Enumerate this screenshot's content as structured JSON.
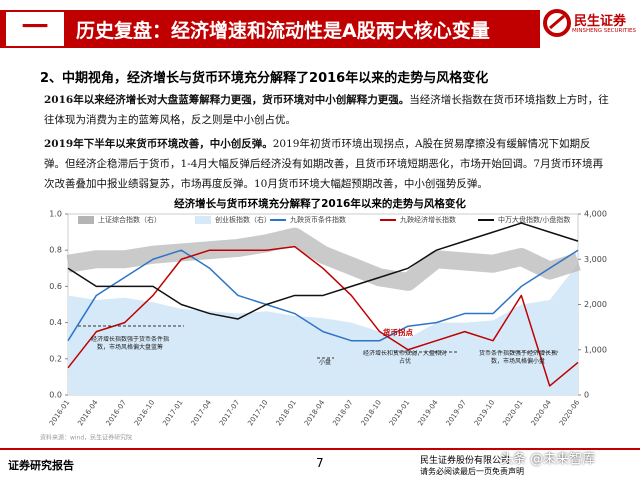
{
  "header": {
    "number": "一",
    "title": "历史复盘：经济增速和流动性是A股两大核心变量",
    "logo_cn": "民生证券",
    "logo_en": "MINSHENG SECURITIES"
  },
  "section": "2、中期视角，经济增长与货币环境充分解释了2016年以来的走势与风格变化",
  "paragraphs": [
    {
      "lead": "2016年以来经济增长对大盘蓝筹解释力更强，货币环境对中小创解释力更强。",
      "text": "当经济增长指数在货币环境指数上方时，往往体现为消费为主的蓝筹风格，反之则是中小创占优。"
    },
    {
      "lead": "2019年下半年以来货币环境改善，中小创反弹。",
      "text": "2019年初货币环境出现拐点，A股在贸易摩擦没有缓解情况下如期反弹。但经济企稳滞后于货币，1-4月大幅反弹后经济没有如期改善，且货币环境短期恶化，市场开始回调。7月货币环境再次改善叠加中报业绩弱复苏，市场再度反弹。10月货币环境大幅超预期改善，中小创强势反弹。"
    }
  ],
  "chart_data": {
    "type": "line",
    "title": "经济增长与货币环境充分解释了2016年以来的走势与风格变化",
    "categories": [
      "2016-01",
      "2016-04",
      "2016-07",
      "2016-10",
      "2017-01",
      "2017-04",
      "2017-07",
      "2017-10",
      "2018-01",
      "2018-04",
      "2018-07",
      "2018-10",
      "2019-01",
      "2019-04",
      "2019-07",
      "2019-10",
      "2020-01",
      "2020-04",
      "2020-06"
    ],
    "series": [
      {
        "name": "上证综合指数（右）",
        "type": "band",
        "color": "#b4b4b4",
        "axis": "y2",
        "values": [
          2900,
          3000,
          3000,
          3100,
          3150,
          3200,
          3250,
          3350,
          3500,
          3100,
          2850,
          2600,
          2500,
          3000,
          2950,
          2900,
          3050,
          2750,
          2950
        ]
      },
      {
        "name": "创业板指数（右）",
        "type": "area",
        "color": "#d6e9f8",
        "axis": "y2",
        "values": [
          2200,
          2100,
          2150,
          2050,
          1900,
          1850,
          1800,
          1850,
          1750,
          1700,
          1600,
          1400,
          1250,
          1600,
          1600,
          1650,
          2000,
          2100,
          2900
        ]
      },
      {
        "name": "九鞅货币条件指数",
        "type": "line",
        "color": "#2e75c6",
        "values": [
          0.3,
          0.55,
          0.65,
          0.75,
          0.8,
          0.7,
          0.55,
          0.5,
          0.45,
          0.35,
          0.3,
          0.3,
          0.38,
          0.4,
          0.45,
          0.45,
          0.6,
          0.7,
          0.8
        ]
      },
      {
        "name": "九鞅经济增长指数",
        "type": "line",
        "color": "#c00000",
        "values": [
          0.15,
          0.35,
          0.4,
          0.55,
          0.75,
          0.8,
          0.8,
          0.8,
          0.82,
          0.7,
          0.55,
          0.35,
          0.25,
          0.3,
          0.35,
          0.3,
          0.55,
          0.05,
          0.18
        ]
      },
      {
        "name": "中万大盘指数/小盘指数",
        "type": "line",
        "color": "#111111",
        "values": [
          0.7,
          0.6,
          0.6,
          0.6,
          0.5,
          0.45,
          0.42,
          0.5,
          0.55,
          0.55,
          0.6,
          0.65,
          0.7,
          0.8,
          0.85,
          0.9,
          0.95,
          0.9,
          0.85
        ]
      }
    ],
    "ylim": [
      0,
      1
    ],
    "yticks": [
      {
        "value": 0,
        "label": "0.0"
      },
      0.2,
      0.4,
      0.6,
      0.8,
      {
        "value": 1,
        "label": "1.0"
      }
    ],
    "y2lim": [
      0,
      4000
    ],
    "y2ticks": [
      0,
      {
        "value": 1000,
        "label": "1,000"
      },
      {
        "value": 2000,
        "label": "2,000"
      },
      {
        "value": 3000,
        "label": "3,000"
      },
      {
        "value": 4000,
        "label": "4,000"
      }
    ],
    "annotations": [
      "经济增长指数强于货币条件指数，市场风格偏大盘蓝筹",
      "小盘",
      "经济增长和货币双弱，大盘相对占优",
      "货币条件指数强于经济增长指数，市场风格偏小盘",
      "货币拐点"
    ],
    "source": "资料来源：wind，民生证券研究院"
  },
  "watermark": "头条 @未来智库",
  "footer": {
    "left": "证券研究报告",
    "page": "7",
    "company": "民生证券股份有限公司",
    "disclaimer": "请务必阅读最后一页免责声明"
  }
}
